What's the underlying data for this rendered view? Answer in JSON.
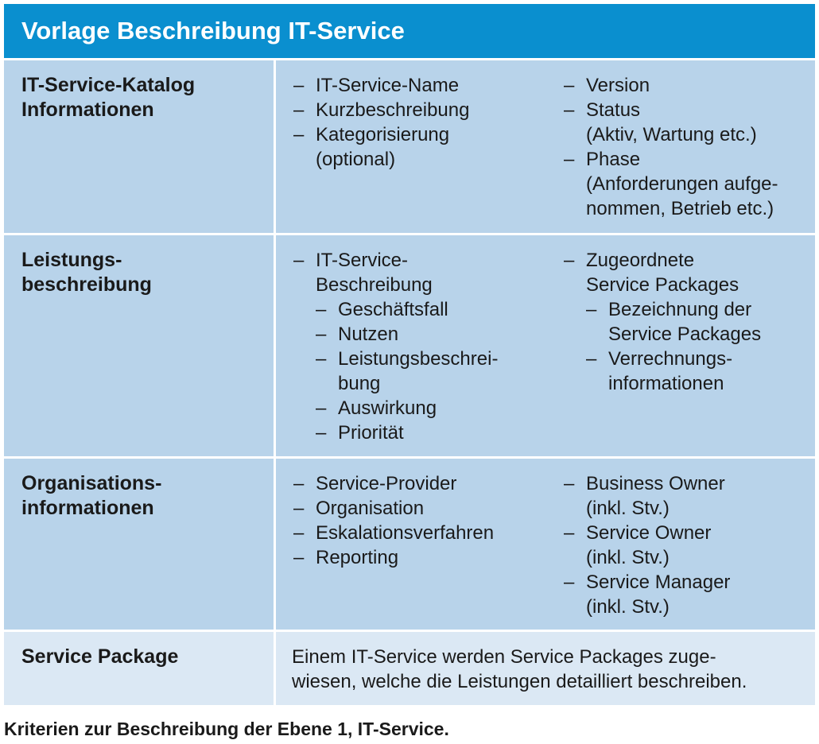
{
  "title": "Vorlage Beschreibung IT-Service",
  "dash": "–",
  "rows": [
    {
      "label_lines": [
        "IT-Service-Katalog",
        "Informationen"
      ],
      "col_a": [
        {
          "level": 1,
          "lines": [
            "IT-Service-Name"
          ]
        },
        {
          "level": 1,
          "lines": [
            "Kurzbeschreibung"
          ]
        },
        {
          "level": 1,
          "lines": [
            "Kategorisierung",
            "(optional)"
          ]
        }
      ],
      "col_b": [
        {
          "level": 1,
          "lines": [
            "Version"
          ]
        },
        {
          "level": 1,
          "lines": [
            "Status",
            "(Aktiv, Wartung etc.)"
          ]
        },
        {
          "level": 1,
          "lines": [
            "Phase",
            "(Anforderungen aufge-",
            "nommen, Betrieb etc.)"
          ]
        }
      ]
    },
    {
      "label_lines": [
        "Leistungs-",
        "beschreibung"
      ],
      "col_a": [
        {
          "level": 1,
          "lines": [
            "IT-Service-",
            "Beschreibung"
          ]
        },
        {
          "level": 2,
          "lines": [
            "Geschäftsfall"
          ]
        },
        {
          "level": 2,
          "lines": [
            "Nutzen"
          ]
        },
        {
          "level": 2,
          "lines": [
            "Leistungsbeschrei-",
            "bung"
          ]
        },
        {
          "level": 2,
          "lines": [
            "Auswirkung"
          ]
        },
        {
          "level": 2,
          "lines": [
            "Priorität"
          ]
        }
      ],
      "col_b": [
        {
          "level": 1,
          "lines": [
            "Zugeordnete",
            "Service Packages"
          ]
        },
        {
          "level": 2,
          "lines": [
            "Bezeichnung der",
            "Service Packages"
          ]
        },
        {
          "level": 2,
          "lines": [
            "Verrechnungs-",
            "informationen"
          ]
        }
      ]
    },
    {
      "label_lines": [
        "Organisations-",
        "informationen"
      ],
      "col_a": [
        {
          "level": 1,
          "lines": [
            "Service-Provider"
          ]
        },
        {
          "level": 1,
          "lines": [
            "Organisation"
          ]
        },
        {
          "level": 1,
          "lines": [
            "Eskalationsverfahren"
          ]
        },
        {
          "level": 1,
          "lines": [
            "Reporting"
          ]
        }
      ],
      "col_b": [
        {
          "level": 1,
          "lines": [
            "Business Owner",
            "(inkl. Stv.)"
          ]
        },
        {
          "level": 1,
          "lines": [
            "Service Owner",
            "(inkl. Stv.)"
          ]
        },
        {
          "level": 1,
          "lines": [
            "Service Manager",
            "(inkl. Stv.)"
          ]
        }
      ]
    }
  ],
  "service_package": {
    "label": "Service Package",
    "description_lines": [
      "Einem IT-Service werden Service Packages zuge-",
      "wiesen, welche die Leistungen detailliert beschreiben."
    ]
  },
  "caption": "Kriterien zur Beschreibung der Ebene 1, IT-Service.",
  "colors": {
    "header": "#0a8fcf",
    "row": "#b8d3ea",
    "last_row": "#dbe8f4"
  }
}
